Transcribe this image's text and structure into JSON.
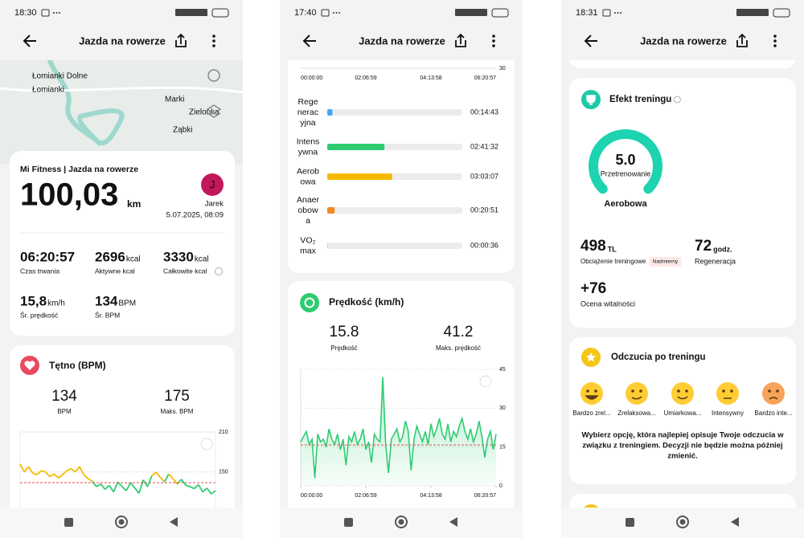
{
  "screens": [
    {
      "status_time": "18:30",
      "title": "Jazda na rowerze",
      "map_labels": [
        "Łomianki Dolne",
        "Łomianki",
        "Marki",
        "Zielonka",
        "Ząbki"
      ],
      "summary": {
        "source": "Mi Fitness | Jazda na rowerze",
        "distance": "100,03",
        "distance_unit": "km",
        "avatar": "J",
        "user": "Jarek",
        "date": "5.07.2025, 08:09",
        "stats": [
          {
            "value": "06:20:57",
            "label": "Czas trwania"
          },
          {
            "value": "2696",
            "unit": "kcal",
            "label": "Aktywne kcal"
          },
          {
            "value": "3330",
            "unit": "kcal",
            "label": "Całkowite kcal"
          },
          {
            "value": "15,8",
            "unit": "km/h",
            "label": "Śr. prędkość"
          },
          {
            "value": "134",
            "unit": "BPM",
            "label": "Śr. BPM"
          }
        ]
      },
      "heart": {
        "title": "Tętno (BPM)",
        "avg": "134",
        "avg_label": "BPM",
        "max": "175",
        "max_label": "Maks. BPM",
        "chart": {
          "type": "line",
          "ylim": [
            110,
            210
          ],
          "yticks": [
            150,
            210
          ],
          "avg_color": "#e05050",
          "zones": [
            {
              "from": 140,
              "color": "#f5b800"
            },
            {
              "from": 115,
              "color": "#2ecc71"
            },
            {
              "from": 0,
              "color": "#42a5f5"
            }
          ],
          "values": [
            162,
            150,
            158,
            148,
            146,
            152,
            150,
            143,
            147,
            141,
            146,
            152,
            155,
            150,
            158,
            146,
            140,
            136,
            128,
            132,
            124,
            130,
            120,
            135,
            128,
            122,
            134,
            126,
            118,
            138,
            128,
            144,
            150,
            142,
            135,
            147,
            140,
            132,
            139,
            130,
            128,
            125,
            131,
            120,
            126,
            117,
            122
          ]
        }
      }
    },
    {
      "status_time": "17:40",
      "title": "Jazda na rowerze",
      "top_chart": {
        "yticks": [
          30
        ],
        "xticks": [
          {
            "value": 0,
            "label": "00:00:00"
          },
          {
            "value": 7619,
            "label": "02:06:59"
          },
          {
            "value": 15238,
            "label": "04:13:58"
          },
          {
            "value": 22857,
            "label": "06:20:57"
          }
        ]
      },
      "zones": [
        {
          "name_lines": [
            "Rege",
            "nerac",
            "yjna"
          ],
          "time": "00:14:43",
          "color": "#42a5f5"
        },
        {
          "name_lines": [
            "Intens",
            "ywna"
          ],
          "time": "02:41:32",
          "color": "#2ecc71"
        },
        {
          "name_lines": [
            "Aerob",
            "owa"
          ],
          "time": "03:03:07",
          "color": "#f5b800"
        },
        {
          "name_lines": [
            "Anaer",
            "obow",
            "a"
          ],
          "time": "00:20:51",
          "color": "#f08a24"
        },
        {
          "name_lines": [
            "VO₂",
            "max"
          ],
          "time": "00:00:36",
          "color": "#e05050"
        }
      ],
      "speed": {
        "title": "Prędkość (km/h)",
        "avg": "15.8",
        "avg_label": "Prędkość",
        "max": "41.2",
        "max_label": "Maks. prędkość",
        "chart": {
          "type": "area",
          "color": "#2ecc71",
          "avg_color": "#e05050",
          "xlim": [
            0,
            22857
          ],
          "xticks": [
            {
              "value": 0,
              "label": "00:00:00"
            },
            {
              "value": 7619,
              "label": "02:06:59"
            },
            {
              "value": 15238,
              "label": "04:13:58"
            },
            {
              "value": 22857,
              "label": "06:20:57"
            }
          ],
          "ylim": [
            0,
            45
          ],
          "yticks": [
            0,
            15,
            30,
            45
          ],
          "values": [
            17,
            19,
            21,
            16,
            18,
            3,
            20,
            17,
            18,
            15,
            22,
            18,
            16,
            20,
            14,
            18,
            8,
            19,
            17,
            21,
            16,
            18,
            22,
            14,
            17,
            9,
            20,
            18,
            17,
            42,
            16,
            5,
            18,
            20,
            22,
            17,
            19,
            25,
            21,
            6,
            18,
            23,
            20,
            17,
            21,
            16,
            24,
            19,
            22,
            26,
            20,
            18,
            24,
            17,
            21,
            19,
            23,
            26,
            21,
            18,
            22,
            17,
            20,
            25,
            19,
            11,
            18,
            21,
            14,
            20
          ]
        }
      }
    },
    {
      "status_time": "18:31",
      "title": "Jazda na rowerze",
      "effect": {
        "title": "Efekt treningu",
        "score": "5.0",
        "score_label": "Przetrenowanie",
        "kind": "Aerobowa",
        "load": "498",
        "load_unit": "TL",
        "load_label": "Obciążenie treningowe",
        "load_tag": "Nadmierny",
        "recovery": "72",
        "recovery_unit": "godz.",
        "recovery_label": "Regeneracja",
        "vitality": "+76",
        "vitality_label": "Ocena witalności"
      },
      "feelings": {
        "title": "Odczucia po treningu",
        "options": [
          "Bardzo zrel...",
          "Zrelaksowa...",
          "Umiarkowa...",
          "Intensywny",
          "Bardzo inte..."
        ],
        "note_lines": [
          "Wybierz opcję, która najlepiej opisuje Twoje odczucia w",
          "związku z treningiem. Decyzji nie będzie można później",
          "zmienić."
        ]
      }
    }
  ]
}
